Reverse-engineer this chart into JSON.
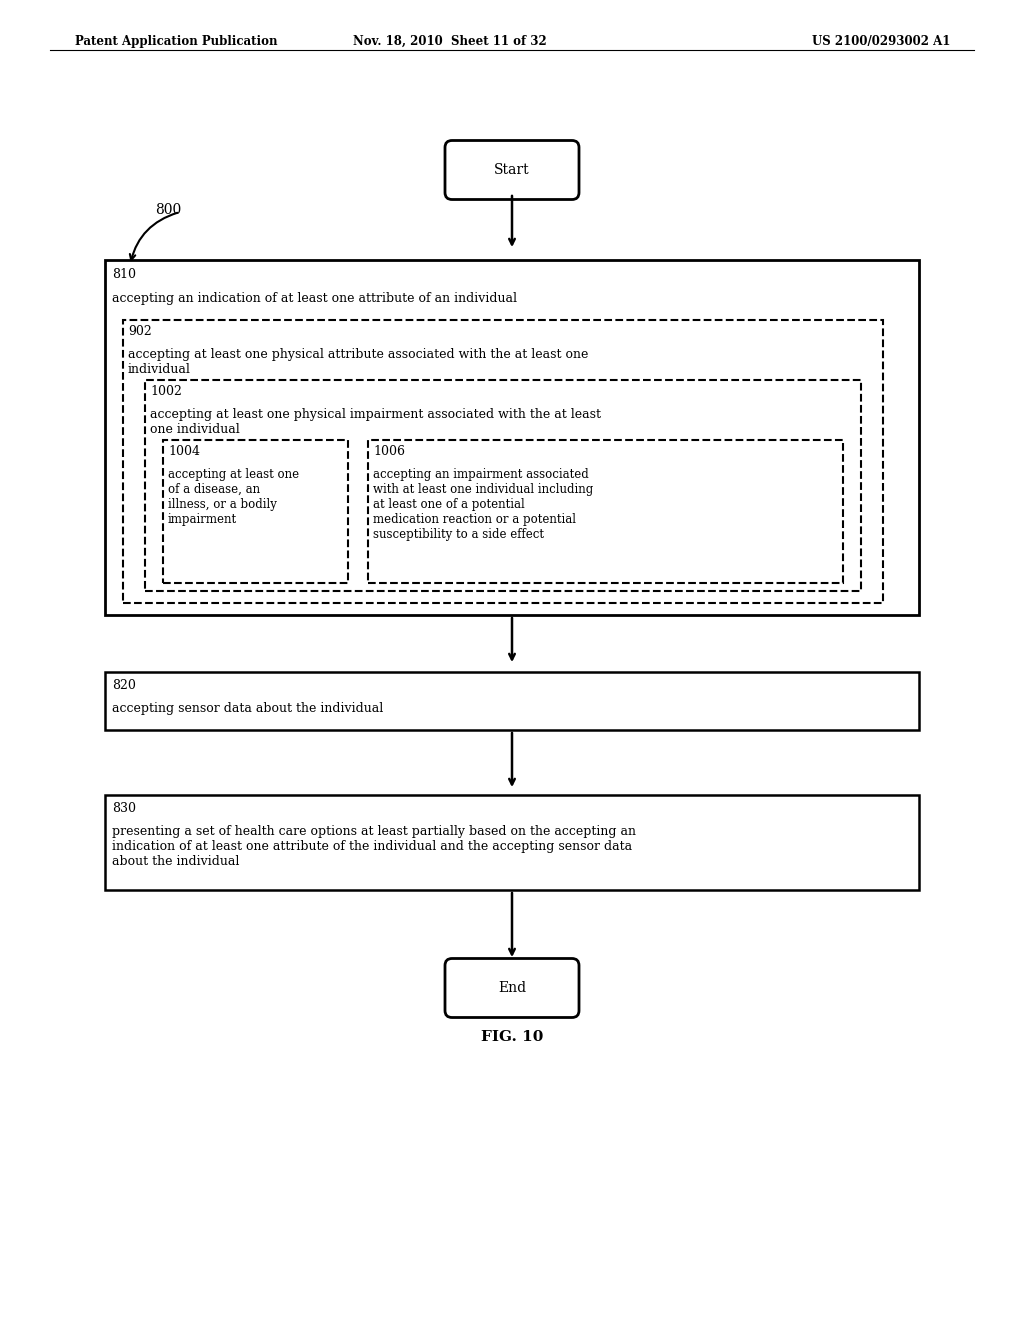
{
  "header_left": "Patent Application Publication",
  "header_mid": "Nov. 18, 2010  Sheet 11 of 32",
  "header_right": "US 2100/0293002 A1",
  "fig_label": "FIG. 10",
  "bg_color": "#ffffff",
  "text_color": "#000000",
  "start_label": "Start",
  "end_label": "End",
  "arrow_color": "#000000",
  "diagram_label": "800",
  "box810_id": "810",
  "box810_text": "accepting an indication of at least one attribute of an individual",
  "box902_id": "902",
  "box902_text": "accepting at least one physical attribute associated with the at least one\nindividual",
  "box1002_id": "1002",
  "box1002_text": "accepting at least one physical impairment associated with the at least\none individual",
  "box1004_id": "1004",
  "box1004_text": "accepting at least one\nof a disease, an\nillness, or a bodily\nimpairment",
  "box1006_id": "1006",
  "box1006_text": "accepting an impairment associated\nwith at least one individual including\nat least one of a potential\nmedication reaction or a potential\nsusceptibility to a side effect",
  "box820_id": "820",
  "box820_text": "accepting sensor data about the individual",
  "box830_id": "830",
  "box830_text": "presenting a set of health care options at least partially based on the accepting an\nindication of at least one attribute of the individual and the accepting sensor data\nabout the individual"
}
